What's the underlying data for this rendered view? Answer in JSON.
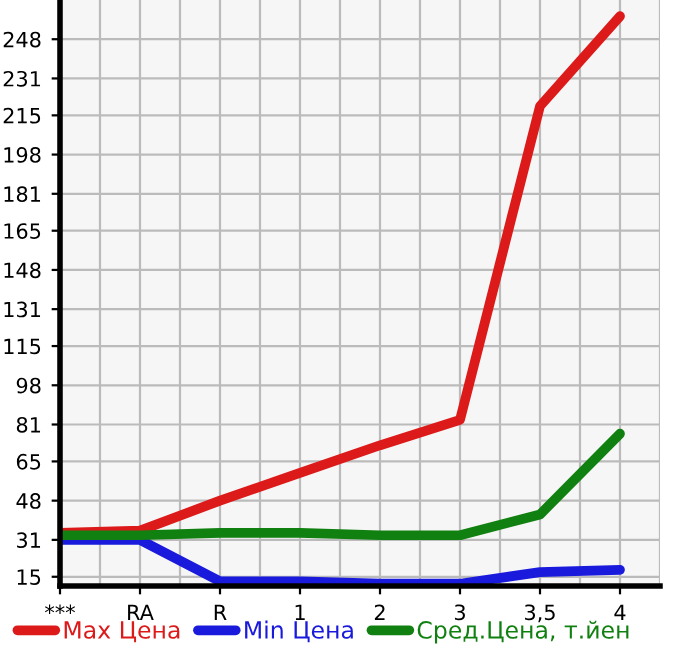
{
  "chart_data": {
    "type": "line",
    "categories": [
      "***",
      "RA",
      "R",
      "1",
      "2",
      "3",
      "3,5",
      "4"
    ],
    "series": [
      {
        "name": "Max Цена",
        "color": "#dd1a1a",
        "values": [
          34,
          35,
          48,
          60,
          72,
          83,
          219,
          258
        ]
      },
      {
        "name": "Min Цена",
        "color": "#1a1add",
        "values": [
          31,
          31,
          13,
          13,
          12,
          12,
          17,
          18
        ]
      },
      {
        "name": "Сред.Цена, т.йен",
        "color": "#108010",
        "values": [
          33,
          33,
          34,
          34,
          33,
          33,
          42,
          77
        ]
      }
    ],
    "ylim": [
      11,
      265
    ],
    "yticks": [
      15,
      31,
      48,
      65,
      81,
      98,
      115,
      131,
      148,
      165,
      181,
      198,
      215,
      231,
      248
    ],
    "grid": true,
    "legend": "bottom",
    "marker": "none",
    "line_style": "solid"
  }
}
